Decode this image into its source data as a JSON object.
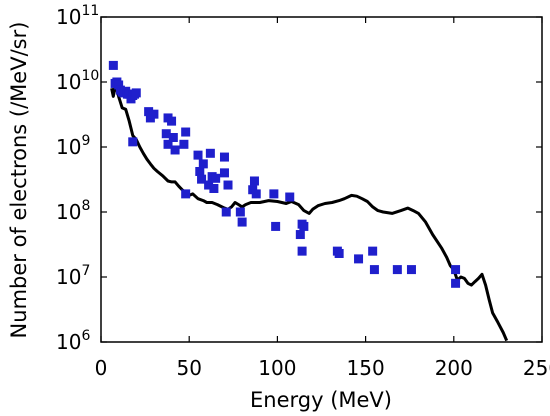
{
  "chart_data": {
    "type": "scatter",
    "xlabel": "Energy (MeV)",
    "ylabel": "Number of electrons (/MeV/sr)",
    "xlim": [
      0,
      250
    ],
    "ylim": [
      1000000,
      100000000000
    ],
    "y_scale": "log",
    "x_ticks": [
      {
        "value": 0,
        "label": "0"
      },
      {
        "value": 50,
        "label": "50"
      },
      {
        "value": 100,
        "label": "100"
      },
      {
        "value": 150,
        "label": "150"
      },
      {
        "value": 200,
        "label": "200"
      },
      {
        "value": 250,
        "label": "250"
      }
    ],
    "y_ticks": [
      {
        "value": 1000000,
        "base": "10",
        "exp": "6"
      },
      {
        "value": 10000000,
        "base": "10",
        "exp": "7"
      },
      {
        "value": 100000000,
        "base": "10",
        "exp": "8"
      },
      {
        "value": 1000000000,
        "base": "10",
        "exp": "9"
      },
      {
        "value": 10000000000,
        "base": "10",
        "exp": "10"
      },
      {
        "value": 100000000000,
        "base": "10",
        "exp": "11"
      }
    ],
    "grid": false,
    "legend": "none",
    "colors": {
      "line": "#000000",
      "points": "#1f1fcc"
    },
    "line_series": {
      "points": [
        [
          6,
          8000000000.0
        ],
        [
          7,
          6000000000.0
        ],
        [
          8,
          8500000000.0
        ],
        [
          9,
          7500000000.0
        ],
        [
          10,
          6000000000.0
        ],
        [
          12,
          4000000000.0
        ],
        [
          14,
          3800000000.0
        ],
        [
          16,
          2500000000.0
        ],
        [
          18,
          1500000000.0
        ],
        [
          20,
          1300000000.0
        ],
        [
          22,
          1000000000.0
        ],
        [
          24,
          800000000.0
        ],
        [
          26,
          650000000.0
        ],
        [
          28,
          550000000.0
        ],
        [
          30,
          470000000.0
        ],
        [
          32,
          420000000.0
        ],
        [
          35,
          360000000.0
        ],
        [
          38,
          300000000.0
        ],
        [
          40,
          290000000.0
        ],
        [
          42,
          290000000.0
        ],
        [
          44,
          250000000.0
        ],
        [
          46,
          220000000.0
        ],
        [
          48,
          200000000.0
        ],
        [
          50,
          180000000.0
        ],
        [
          52,
          190000000.0
        ],
        [
          55,
          160000000.0
        ],
        [
          58,
          150000000.0
        ],
        [
          60,
          140000000.0
        ],
        [
          63,
          140000000.0
        ],
        [
          66,
          130000000.0
        ],
        [
          70,
          115000000.0
        ],
        [
          72,
          110000000.0
        ],
        [
          74,
          120000000.0
        ],
        [
          76,
          140000000.0
        ],
        [
          78,
          130000000.0
        ],
        [
          80,
          120000000.0
        ],
        [
          82,
          130000000.0
        ],
        [
          85,
          140000000.0
        ],
        [
          90,
          140000000.0
        ],
        [
          95,
          150000000.0
        ],
        [
          100,
          145000000.0
        ],
        [
          105,
          135000000.0
        ],
        [
          108,
          145000000.0
        ],
        [
          112,
          130000000.0
        ],
        [
          115,
          105000000.0
        ],
        [
          118,
          95000000.0
        ],
        [
          120,
          110000000.0
        ],
        [
          123,
          125000000.0
        ],
        [
          127,
          135000000.0
        ],
        [
          131,
          140000000.0
        ],
        [
          135,
          150000000.0
        ],
        [
          138,
          160000000.0
        ],
        [
          142,
          180000000.0
        ],
        [
          145,
          175000000.0
        ],
        [
          148,
          160000000.0
        ],
        [
          151,
          145000000.0
        ],
        [
          154,
          120000000.0
        ],
        [
          157,
          105000000.0
        ],
        [
          160,
          100000000.0
        ],
        [
          165,
          95000000.0
        ],
        [
          170,
          105000000.0
        ],
        [
          174,
          115000000.0
        ],
        [
          177,
          105000000.0
        ],
        [
          180,
          95000000.0
        ],
        [
          184,
          70000000.0
        ],
        [
          188,
          45000000.0
        ],
        [
          193,
          28000000.0
        ],
        [
          196,
          20000000.0
        ],
        [
          198,
          15000000.0
        ],
        [
          200,
          13000000.0
        ],
        [
          202,
          9000000.0
        ],
        [
          204,
          10000000.0
        ],
        [
          206,
          9500000.0
        ],
        [
          208,
          8000000.0
        ],
        [
          210,
          7500000.0
        ],
        [
          212,
          8500000.0
        ],
        [
          214,
          9500000.0
        ],
        [
          216,
          11000000.0
        ],
        [
          218,
          7500000.0
        ],
        [
          220,
          4500000.0
        ],
        [
          222,
          2800000.0
        ],
        [
          225,
          2000000.0
        ],
        [
          228,
          1400000.0
        ],
        [
          230,
          1050000.0
        ]
      ]
    },
    "scatter_series": {
      "points": [
        [
          7,
          18000000000.0
        ],
        [
          8,
          9500000000.0
        ],
        [
          9,
          10000000000.0
        ],
        [
          10,
          9000000000.0
        ],
        [
          11,
          7500000000.0
        ],
        [
          12,
          7000000000.0
        ],
        [
          13,
          6800000000.0
        ],
        [
          14,
          7200000000.0
        ],
        [
          15,
          6500000000.0
        ],
        [
          16,
          6500000000.0
        ],
        [
          17,
          5500000000.0
        ],
        [
          18,
          6200000000.0
        ],
        [
          19,
          6500000000.0
        ],
        [
          20,
          6800000000.0
        ],
        [
          18,
          1200000000.0
        ],
        [
          27,
          3500000000.0
        ],
        [
          28,
          2800000000.0
        ],
        [
          30,
          3200000000.0
        ],
        [
          37,
          1600000000.0
        ],
        [
          38,
          1100000000.0
        ],
        [
          38,
          2800000000.0
        ],
        [
          40,
          2500000000.0
        ],
        [
          41,
          1400000000.0
        ],
        [
          42,
          900000000.0
        ],
        [
          47,
          1100000000.0
        ],
        [
          48,
          1700000000.0
        ],
        [
          48,
          190000000.0
        ],
        [
          55,
          750000000.0
        ],
        [
          56,
          420000000.0
        ],
        [
          57,
          320000000.0
        ],
        [
          58,
          550000000.0
        ],
        [
          61,
          260000000.0
        ],
        [
          62,
          800000000.0
        ],
        [
          63,
          350000000.0
        ],
        [
          64,
          230000000.0
        ],
        [
          65,
          330000000.0
        ],
        [
          70,
          700000000.0
        ],
        [
          70,
          400000000.0
        ],
        [
          71,
          100000000.0
        ],
        [
          72,
          260000000.0
        ],
        [
          79,
          100000000.0
        ],
        [
          80,
          70000000.0
        ],
        [
          86,
          220000000.0
        ],
        [
          87,
          300000000.0
        ],
        [
          88,
          190000000.0
        ],
        [
          98,
          190000000.0
        ],
        [
          99,
          60000000.0
        ],
        [
          107,
          170000000.0
        ],
        [
          113,
          45000000.0
        ],
        [
          114,
          65000000.0
        ],
        [
          114,
          25000000.0
        ],
        [
          115,
          60000000.0
        ],
        [
          134,
          25000000.0
        ],
        [
          135,
          23000000.0
        ],
        [
          146,
          19000000.0
        ],
        [
          154,
          25000000.0
        ],
        [
          155,
          13000000.0
        ],
        [
          168,
          13000000.0
        ],
        [
          176,
          13000000.0
        ],
        [
          201,
          13000000.0
        ],
        [
          201,
          8000000.0
        ]
      ]
    }
  }
}
